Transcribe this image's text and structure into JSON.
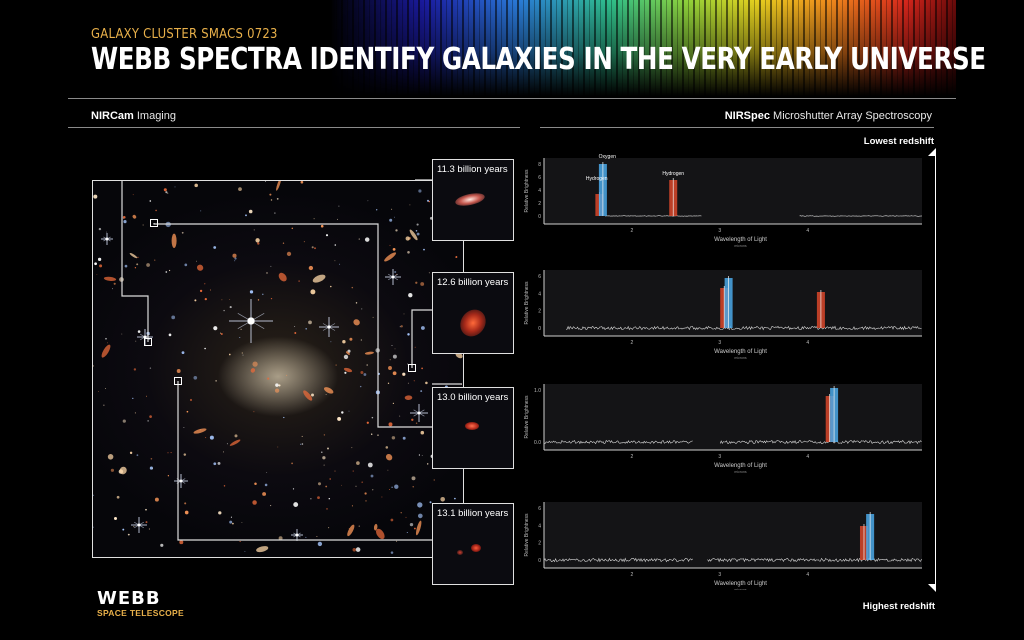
{
  "header": {
    "kicker": "GALAXY CLUSTER SMACS 0723",
    "title": "WEBB SPECTRA IDENTIFY GALAXIES IN THE VERY EARLY UNIVERSE"
  },
  "left_section": {
    "bold": "NIRCam",
    "rest": " Imaging"
  },
  "right_section": {
    "bold": "NIRSpec",
    "rest": " Microshutter Array Spectroscopy"
  },
  "redshift": {
    "top": "Lowest redshift",
    "bottom": "Highest redshift"
  },
  "insets": [
    {
      "label": "11.3 billion years"
    },
    {
      "label": "12.6 billion years"
    },
    {
      "label": "13.0 billion years"
    },
    {
      "label": "13.1 billion years"
    }
  ],
  "spectra_common": {
    "ylabel": "Relative Brightness",
    "xlabel": "Wavelength of Light",
    "xunit": "microns",
    "xticks": [
      "2",
      "3",
      "4"
    ]
  },
  "spectra": [
    {
      "yticks": [
        "0",
        "2",
        "4",
        "6",
        "8"
      ],
      "line_labels": [
        "Hydrogen",
        "Oxygen",
        "Hydrogen"
      ]
    },
    {
      "yticks": [
        "0",
        "2",
        "4",
        "6"
      ],
      "line_labels": []
    },
    {
      "yticks": [
        "0.0",
        "1.0"
      ],
      "line_labels": []
    },
    {
      "yticks": [
        "0",
        "2",
        "4",
        "6"
      ],
      "line_labels": []
    }
  ],
  "colors": {
    "hydrogen": "#d8472a",
    "oxygen": "#4aa8e8",
    "accent": "#e8b04a"
  },
  "logo": {
    "name": "WEBB",
    "sub": "SPACE TELESCOPE"
  }
}
